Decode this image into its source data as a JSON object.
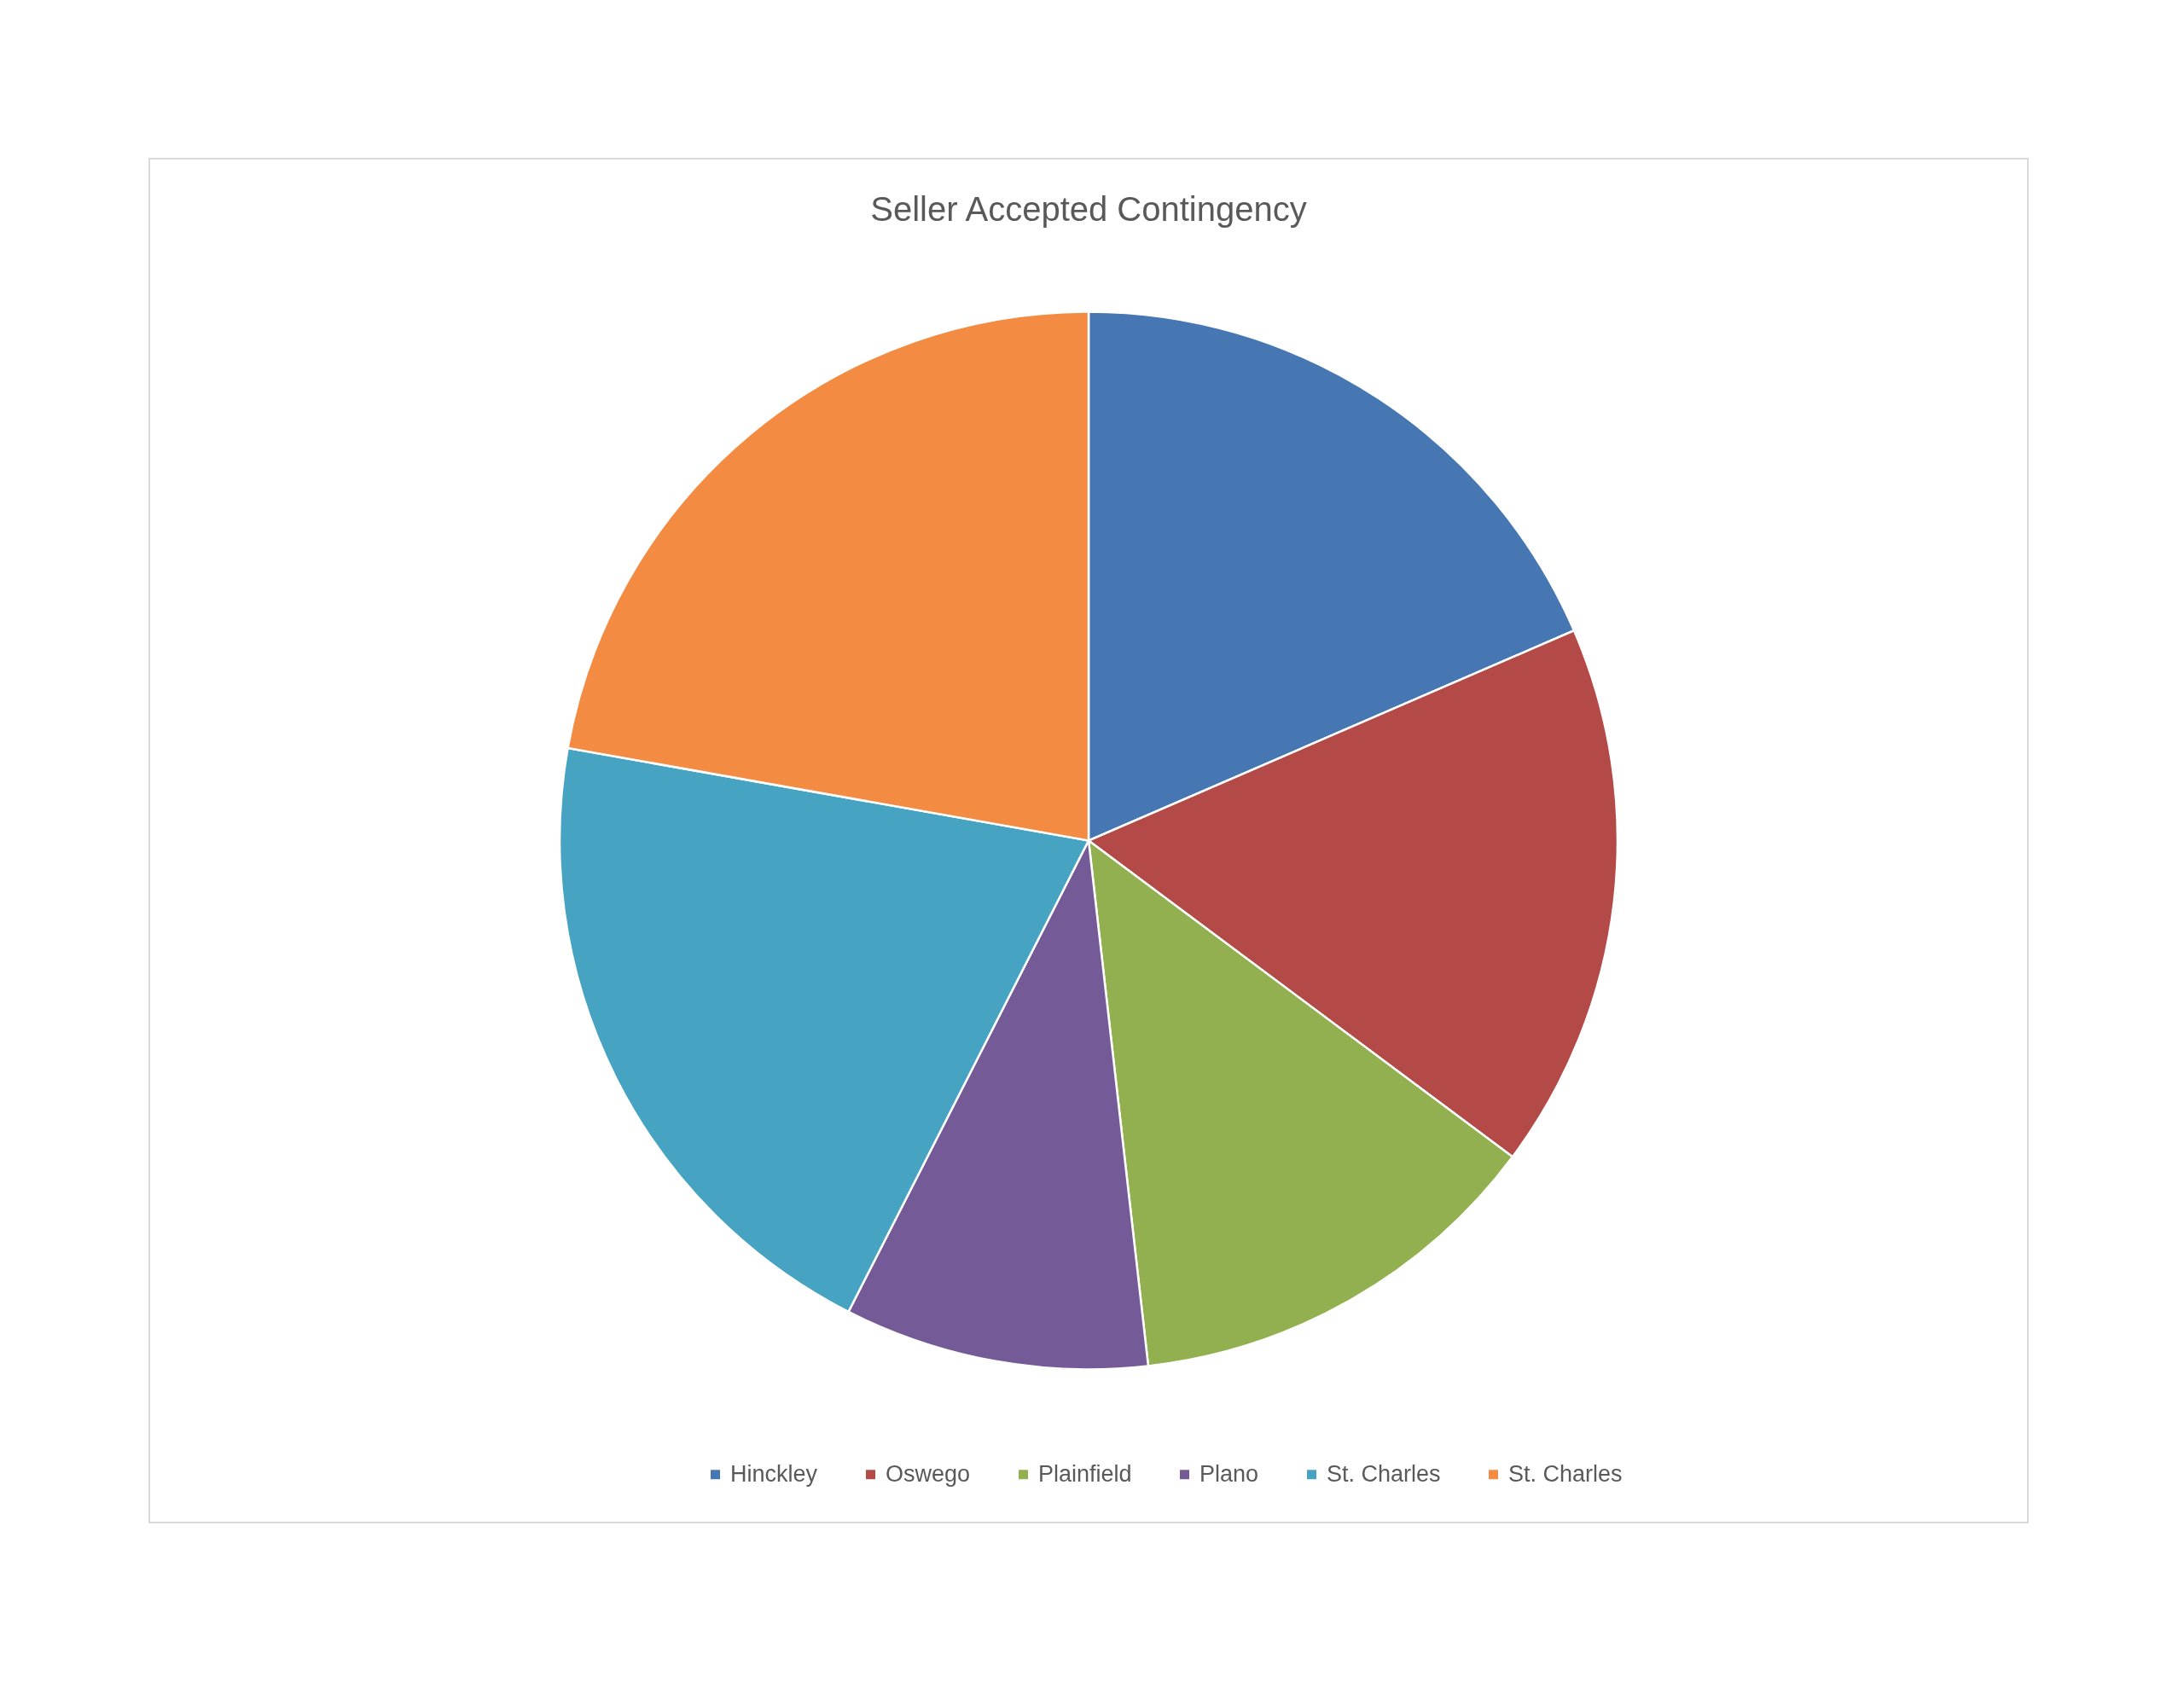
{
  "chart_data": {
    "type": "pie",
    "title": "Seller Accepted Contingency",
    "categories": [
      "Hinckley",
      "Oswego",
      "Plainfield",
      "Plano",
      "St. Charles",
      "St. Charles"
    ],
    "values": [
      18.5,
      16.7,
      13.0,
      9.3,
      20.3,
      22.2
    ],
    "colors": [
      "#4677b3",
      "#b44a48",
      "#93b050",
      "#745a96",
      "#46a4c2",
      "#f38c42"
    ],
    "legend": "bottom"
  }
}
